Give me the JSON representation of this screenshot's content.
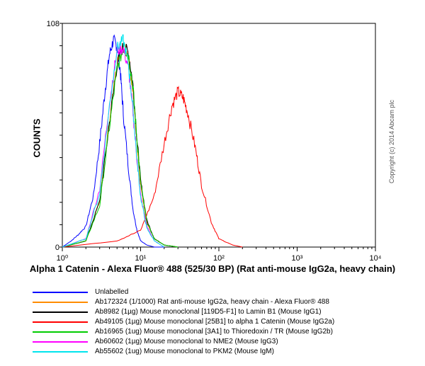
{
  "chart_data": {
    "type": "line",
    "xlabel": "Alpha 1 Catenin - Alexa Fluor® 488 (525/30 BP) (Rat anti-mouse IgG2a, heavy chain)",
    "ylabel": "COUNTS",
    "xscale": "log",
    "xlim": [
      1,
      10000
    ],
    "ylim": [
      0,
      108
    ],
    "x_tick_labels": [
      "10⁰",
      "10¹",
      "10²",
      "10³",
      "10⁴"
    ],
    "y_tick_labels": [
      "0",
      "108"
    ],
    "grid": false,
    "legend_position": "below",
    "series": [
      {
        "name": "Unlabelled",
        "color": "#0000ff",
        "x": [
          1.0,
          1.3,
          1.6,
          2.0,
          2.5,
          3.0,
          3.5,
          4.0,
          4.5,
          5.0,
          5.5,
          6.0,
          7.0,
          8.0,
          9.0,
          10.0,
          12.0,
          15.0,
          20.0
        ],
        "y": [
          0,
          3,
          6,
          10,
          25,
          50,
          75,
          93,
          100,
          97,
          85,
          65,
          38,
          18,
          8,
          3,
          1,
          0,
          0
        ]
      },
      {
        "name": "Ab172324 (1/1000) Rat anti-mouse IgG2a, heavy chain - Alexa Fluor® 488",
        "color": "#ff8c00",
        "x": [
          1.0,
          2.0,
          3.0,
          4.0,
          5.0,
          6.0,
          7.0,
          8.0,
          9.0,
          10.0,
          12.0,
          15.0,
          20.0,
          30.0
        ],
        "y": [
          0,
          3,
          22,
          60,
          88,
          97,
          92,
          75,
          50,
          30,
          12,
          4,
          1,
          0
        ]
      },
      {
        "name": "Ab8982 (1µg) Mouse monoclonal [119D5-F1] to Lamin B1 (Mouse IgG1)",
        "color": "#000000",
        "x": [
          1.0,
          2.0,
          3.0,
          4.0,
          5.0,
          6.0,
          7.0,
          8.0,
          9.0,
          10.0,
          12.0,
          15.0,
          20.0,
          30.0
        ],
        "y": [
          0,
          3,
          22,
          60,
          88,
          97,
          94,
          78,
          52,
          32,
          13,
          4,
          1,
          0
        ]
      },
      {
        "name": "Ab49105 (1µg) Mouse monoclonal [25B1] to alpha 1 Catenin (Mouse IgG2a)",
        "color": "#ff0000",
        "x": [
          1.0,
          5.0,
          10.0,
          15.0,
          20.0,
          25.0,
          30.0,
          35.0,
          40.0,
          50.0,
          60.0,
          80.0,
          100.0,
          150.0,
          200.0
        ],
        "y": [
          0,
          3,
          8,
          25,
          50,
          68,
          75,
          72,
          65,
          48,
          30,
          12,
          4,
          1,
          0
        ]
      },
      {
        "name": "Ab16965 (1ug) Mouse monoclonal [3A1] to Thioredoxin / TR (Mouse IgG2b)",
        "color": "#00cc00",
        "x": [
          1.0,
          2.0,
          3.0,
          4.0,
          5.0,
          6.0,
          7.0,
          8.0,
          9.0,
          10.0,
          12.0,
          15.0,
          20.0,
          30.0
        ],
        "y": [
          0,
          3,
          20,
          58,
          86,
          96,
          93,
          77,
          52,
          31,
          12,
          4,
          1,
          0
        ]
      },
      {
        "name": "Ab60602 (1µg) Mouse monoclonal to NME2 (Mouse IgG3)",
        "color": "#ff00ff",
        "x": [
          1.0,
          2.0,
          3.0,
          4.0,
          5.0,
          6.0,
          7.0,
          8.0,
          9.0,
          10.0,
          12.0,
          15.0,
          20.0
        ],
        "y": [
          0,
          4,
          28,
          70,
          95,
          96,
          86,
          65,
          42,
          25,
          10,
          3,
          0
        ]
      },
      {
        "name": "Ab55602 (1ug) Mouse monoclonal to PKM2 (Mouse IgM)",
        "color": "#00e5ee",
        "x": [
          1.0,
          2.0,
          3.0,
          4.0,
          5.0,
          6.0,
          7.0,
          8.0,
          9.0,
          10.0,
          12.0,
          15.0,
          20.0
        ],
        "y": [
          0,
          4,
          26,
          68,
          96,
          100,
          88,
          66,
          42,
          24,
          9,
          3,
          0
        ]
      }
    ]
  },
  "copyright": "Copyright (c) 2014 Abcam plc"
}
